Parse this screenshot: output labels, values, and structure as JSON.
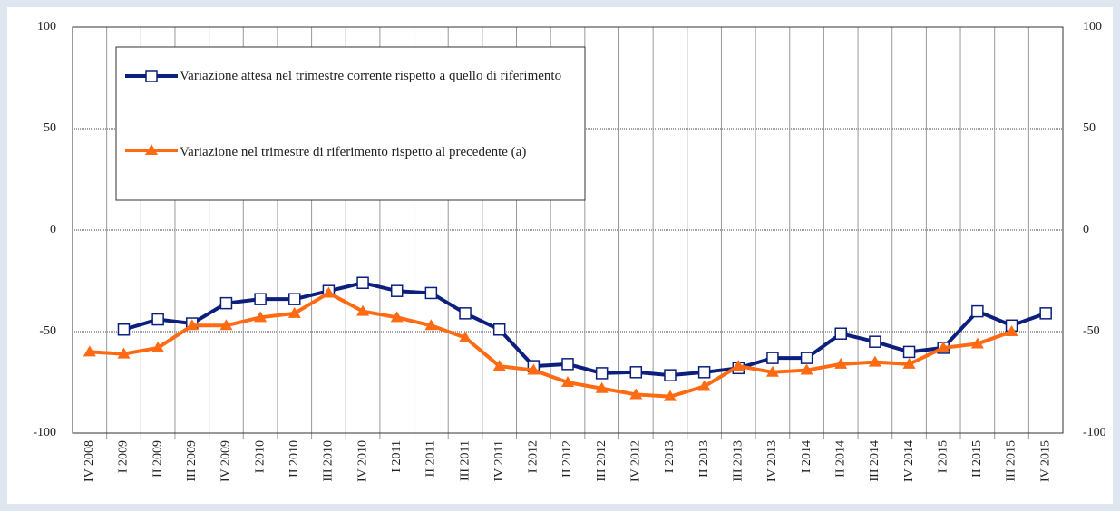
{
  "chart_data": {
    "type": "line",
    "categories": [
      "IV 2008",
      "I 2009",
      "II 2009",
      "III 2009",
      "IV 2009",
      "I 2010",
      "II 2010",
      "III 2010",
      "IV 2010",
      "I 2011",
      "II 2011",
      "III 2011",
      "IV 2011",
      "I 2012",
      "II 2012",
      "III 2012",
      "IV 2012",
      "I 2013",
      "II 2013",
      "III 2013",
      "IV 2013",
      "I 2014",
      "II 2014",
      "III 2014",
      "IV 2014",
      "I 2015",
      "II 2015",
      "III 2015",
      "IV 2015"
    ],
    "series": [
      {
        "name": "Variazione attesa nel trimestre corrente rispetto a quello di riferimento",
        "color": "#0c1f7c",
        "marker": "square",
        "values": [
          null,
          -49,
          -44,
          -46,
          -36,
          -34,
          -34,
          -30,
          -26,
          -30,
          -31,
          -41,
          -49,
          -67,
          -66,
          -70.5,
          -70,
          -71.5,
          -70,
          -68,
          -63,
          -63,
          -51,
          -55,
          -60,
          -58,
          -40,
          -47,
          -41
        ]
      },
      {
        "name": "Variazione nel trimestre di riferimento rispetto al precedente (a)",
        "color": "#ff6a13",
        "marker": "triangle",
        "values": [
          -60,
          -61,
          -58,
          -47,
          -47,
          -43,
          -41,
          -31,
          -40,
          -43,
          -47,
          -53,
          -67,
          -69,
          -75,
          -78,
          -81,
          -82,
          -77,
          -67,
          -70,
          -69,
          -66,
          -65,
          -66,
          -58,
          -56,
          -50,
          null
        ]
      }
    ],
    "ylim": [
      -100,
      100
    ],
    "yticks": [
      -100,
      -50,
      0,
      50,
      100
    ],
    "grid": true
  }
}
